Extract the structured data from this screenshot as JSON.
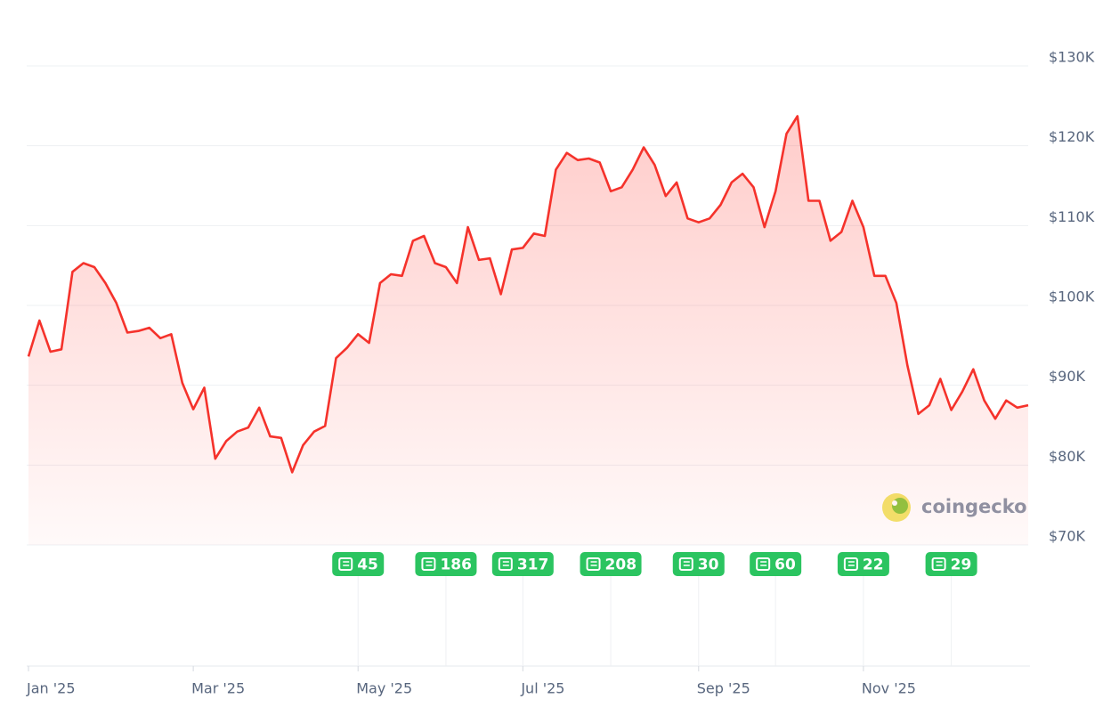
{
  "chart_data": {
    "type": "line",
    "color": "#f5322b",
    "watermark": "coingecko",
    "ylim": [
      70000,
      130000
    ],
    "yticks": [
      {
        "value": 70000,
        "label": "$70K"
      },
      {
        "value": 80000,
        "label": "$80K"
      },
      {
        "value": 90000,
        "label": "$90K"
      },
      {
        "value": 100000,
        "label": "$100K"
      },
      {
        "value": 110000,
        "label": "$110K"
      },
      {
        "value": 120000,
        "label": "$120K"
      },
      {
        "value": 130000,
        "label": "$130K"
      }
    ],
    "grid": true,
    "categories": [
      "Jan '25",
      null,
      null,
      null,
      null,
      null,
      null,
      null,
      null,
      null,
      null,
      null,
      null,
      null,
      null,
      "Mar '25",
      null,
      null,
      null,
      null,
      null,
      null,
      null,
      null,
      null,
      null,
      null,
      null,
      null,
      null,
      "May '25",
      null,
      null,
      null,
      null,
      null,
      null,
      null,
      null,
      null,
      null,
      null,
      null,
      null,
      null,
      "Jul '25",
      null,
      null,
      null,
      null,
      null,
      null,
      null,
      null,
      null,
      null,
      null,
      null,
      null,
      null,
      null,
      "Sep '25",
      null,
      null,
      null,
      null,
      null,
      null,
      null,
      null,
      null,
      null,
      null,
      null,
      null,
      null,
      "Nov '25",
      null,
      null,
      null,
      null,
      null,
      null,
      null,
      null,
      null,
      null,
      null,
      null,
      null,
      null,
      null
    ],
    "values": [
      93600,
      98100,
      94200,
      94500,
      104200,
      105300,
      104800,
      102800,
      100300,
      96600,
      96800,
      97200,
      95900,
      96400,
      90300,
      87000,
      89700,
      80800,
      83000,
      84200,
      84700,
      87200,
      83600,
      83400,
      79100,
      82500,
      84200,
      84900,
      93400,
      94700,
      96400,
      95300,
      102800,
      103900,
      103700,
      108100,
      108700,
      105300,
      104800,
      102800,
      109800,
      105700,
      105900,
      101400,
      107000,
      107200,
      109000,
      108700,
      117000,
      119100,
      118200,
      118400,
      117900,
      114300,
      114800,
      117000,
      119800,
      117600,
      113700,
      115400,
      110900,
      110400,
      110900,
      112600,
      115400,
      116500,
      114800,
      109800,
      114300,
      121500,
      123700,
      113100,
      113100,
      108100,
      109200,
      113100,
      109800,
      103700,
      103700,
      100300,
      92500,
      86400,
      87500,
      90800,
      86900,
      89200,
      92000,
      88100,
      85800,
      88100,
      87200,
      87500
    ],
    "news": [
      {
        "index": 30,
        "count": 45
      },
      {
        "index": 38,
        "count": 186
      },
      {
        "index": 45,
        "count": 317
      },
      {
        "index": 53,
        "count": 208
      },
      {
        "index": 61,
        "count": 30
      },
      {
        "index": 68,
        "count": 60
      },
      {
        "index": 76,
        "count": 22
      },
      {
        "index": 84,
        "count": 29
      }
    ]
  }
}
